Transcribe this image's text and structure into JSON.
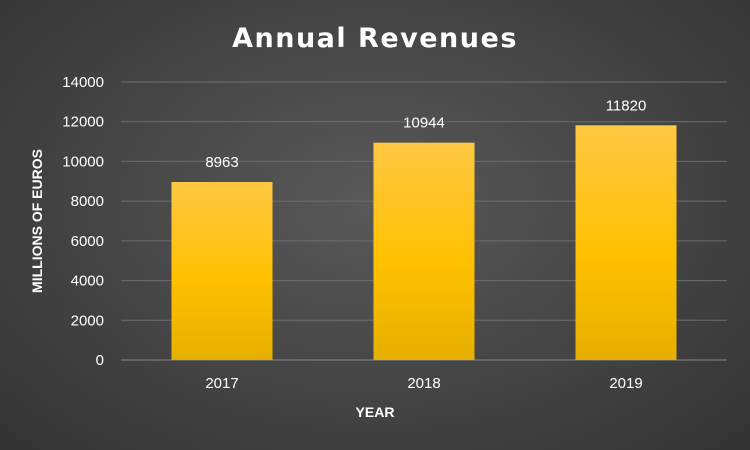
{
  "chart_data": {
    "type": "bar",
    "title": "Annual Revenues",
    "xlabel": "YEAR",
    "ylabel": "MILLIONS OF EUROS",
    "categories": [
      "2017",
      "2018",
      "2019"
    ],
    "values": [
      8963,
      10944,
      11820
    ],
    "ylim": [
      0,
      14000
    ],
    "yticks": [
      0,
      2000,
      4000,
      6000,
      8000,
      10000,
      12000,
      14000
    ],
    "grid": true,
    "legend": "none",
    "data_labels": true,
    "bar_color": "#FFC000",
    "background_color": "#404040"
  }
}
